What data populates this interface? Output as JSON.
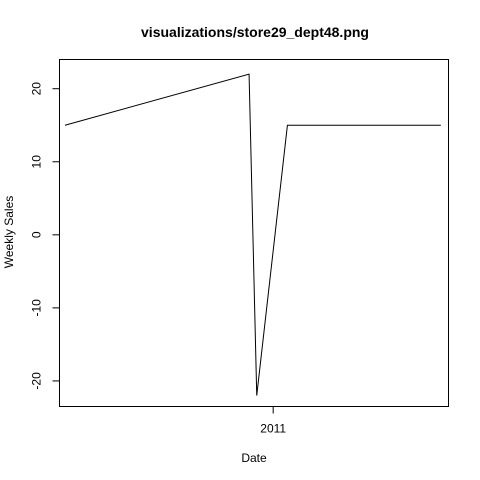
{
  "chart_data": {
    "type": "line",
    "title": "visualizations/store29_dept48.png",
    "xlabel": "Date",
    "ylabel": "Weekly Sales",
    "x_ticks": [
      "2011"
    ],
    "y_ticks": [
      -20,
      -10,
      0,
      10,
      20
    ],
    "xlim": [
      "2010-06-20",
      "2011-06-10"
    ],
    "ylim": [
      -23.5,
      24
    ],
    "grid": false,
    "series": [
      {
        "x": [
          "2010-06-25",
          "2010-12-10",
          "2010-12-17",
          "2011-01-14",
          "2011-06-03"
        ],
        "values": [
          15,
          22,
          -22,
          15,
          15
        ]
      }
    ]
  }
}
